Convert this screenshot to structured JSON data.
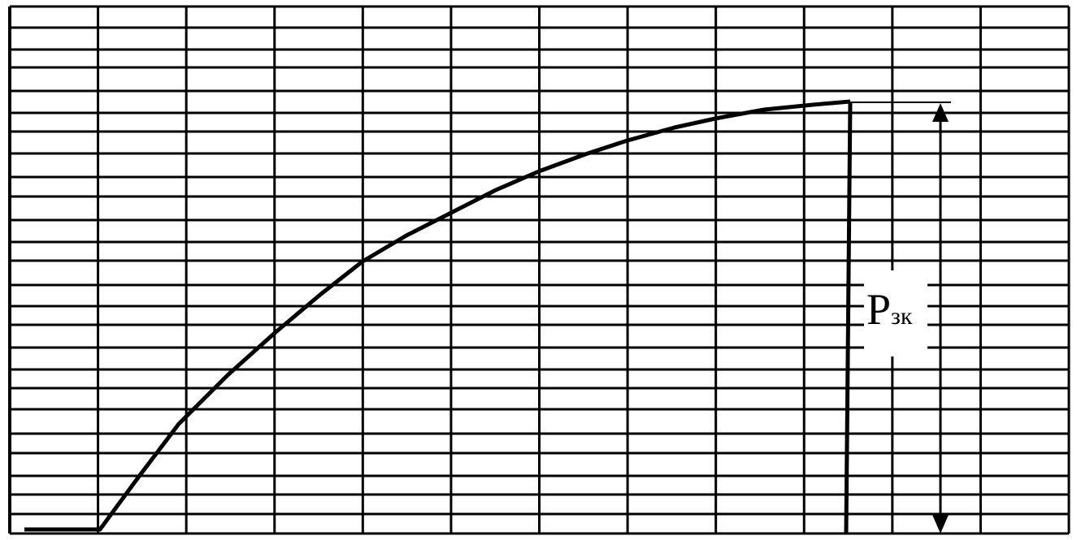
{
  "diagram": {
    "label": {
      "main": "P",
      "sub": "зк"
    },
    "colors": {
      "line": "#000000",
      "background": "#ffffff"
    },
    "grid": {
      "columns": 12,
      "rows": 25
    }
  }
}
